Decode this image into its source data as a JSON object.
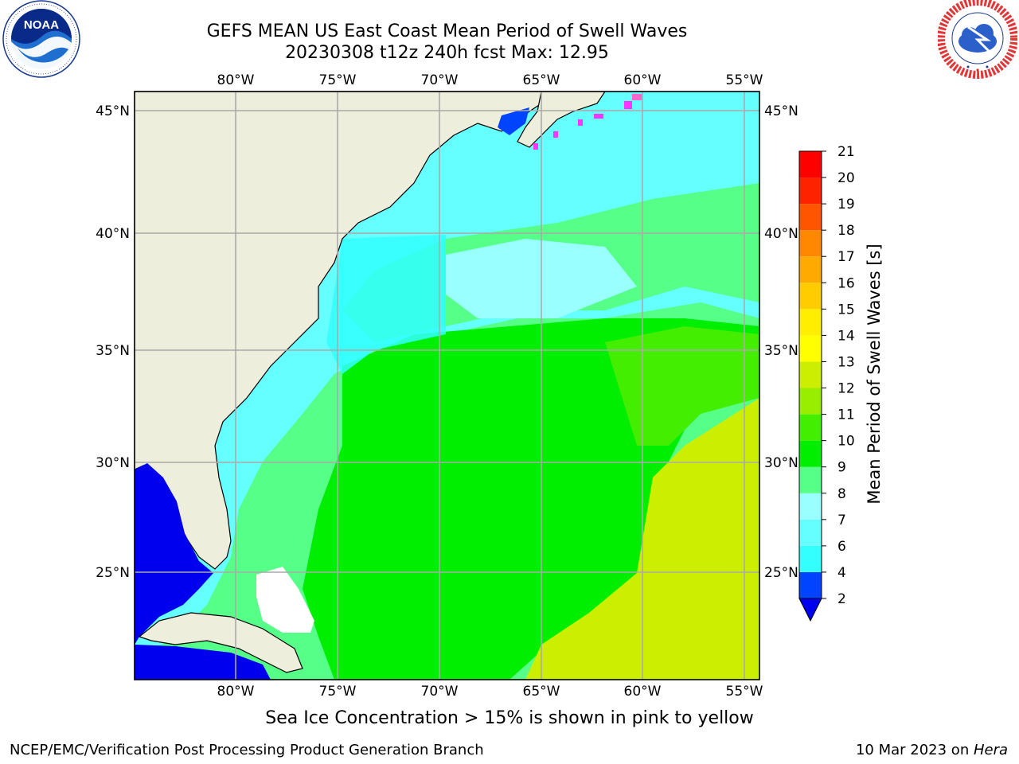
{
  "header": {
    "title_line1": "GEFS MEAN US East Coast Mean Period of Swell Waves",
    "title_line2": "20230308 t12z 240h fcst   Max: 12.95"
  },
  "logos": {
    "left": {
      "name": "noaa-logo",
      "text": "NOAA",
      "ring_text": "NATIONAL OCEANIC AND ATMOSPHERIC ADMINISTRATION · U.S. DEPARTMENT OF COMMERCE"
    },
    "right": {
      "name": "nws-logo",
      "ring_text": "NATIONAL WEATHER SERVICE"
    }
  },
  "map": {
    "lon_labels": [
      "80°W",
      "75°W",
      "70°W",
      "65°W",
      "60°W",
      "55°W"
    ],
    "lat_labels": [
      "45°N",
      "40°N",
      "35°N",
      "30°N",
      "25°N"
    ],
    "colors": {
      "land": "#eeeedd",
      "gridline": "#aaaaaa",
      "frame": "#000000",
      "sea_ice": "#ff33ff"
    }
  },
  "colorbar": {
    "label": "Mean Period of Swell Waves [s]",
    "ticks": [
      "2",
      "4",
      "6",
      "7",
      "8",
      "9",
      "10",
      "11",
      "12",
      "13",
      "14",
      "15",
      "16",
      "17",
      "18",
      "19",
      "20",
      "21"
    ],
    "colors": [
      "#0044ff",
      "#00ddff",
      "#33ffff",
      "#66ffff",
      "#99ffff",
      "#55ff88",
      "#00ee00",
      "#44ee00",
      "#99ee00",
      "#ccee00",
      "#ffff00",
      "#ffee00",
      "#ffcc00",
      "#ffaa00",
      "#ff8800",
      "#ff5500",
      "#ff2200",
      "#ff0000"
    ],
    "under_color": "#0000ee"
  },
  "caption": "Sea Ice Concentration > 15% is shown in pink to yellow",
  "footer": {
    "left": "NCEP/EMC/Verification Post Processing Product Generation Branch",
    "right_prefix": "10 Mar 2023 on ",
    "right_host": "Hera"
  }
}
